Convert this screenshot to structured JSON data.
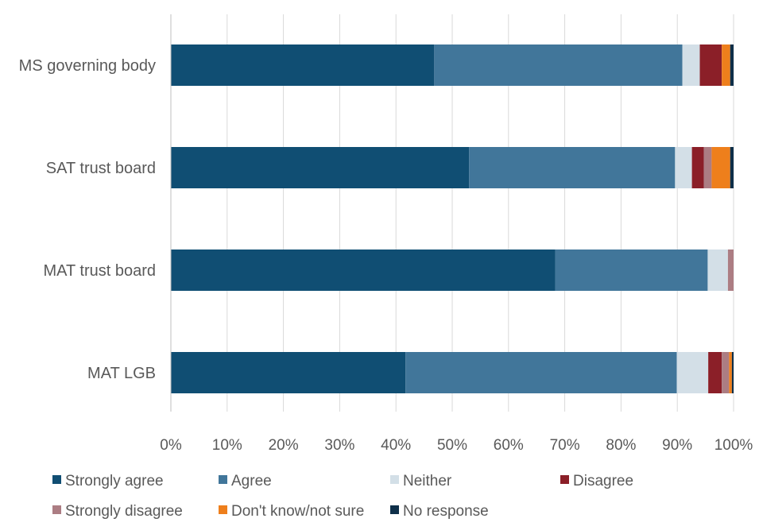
{
  "chart_data": {
    "type": "bar",
    "orientation": "horizontal",
    "stacked": "percent",
    "categories": [
      "MS governing body",
      "SAT trust board",
      "MAT trust board",
      "MAT LGB"
    ],
    "series": [
      {
        "name": "Strongly agree",
        "color": "#104E73",
        "values": [
          46.8,
          53.0,
          68.3,
          41.7
        ]
      },
      {
        "name": "Agree",
        "color": "#41769A",
        "values": [
          44.1,
          36.6,
          27.1,
          48.2
        ]
      },
      {
        "name": "Neither",
        "color": "#D3DFE7",
        "values": [
          3.1,
          3.0,
          3.6,
          5.6
        ]
      },
      {
        "name": "Disagree",
        "color": "#8B1F28",
        "values": [
          3.9,
          2.1,
          0.0,
          2.4
        ]
      },
      {
        "name": "Strongly disagree",
        "color": "#AC7D83",
        "values": [
          0.0,
          1.4,
          1.0,
          1.3
        ]
      },
      {
        "name": "Don't know/not sure",
        "color": "#EE7F1C",
        "values": [
          1.5,
          3.3,
          0.0,
          0.5
        ]
      },
      {
        "name": "No response",
        "color": "#0E2F49",
        "values": [
          0.6,
          0.6,
          0.0,
          0.3
        ]
      }
    ],
    "xlim": [
      0,
      100
    ],
    "x_ticks": [
      "0%",
      "10%",
      "20%",
      "30%",
      "40%",
      "50%",
      "60%",
      "70%",
      "80%",
      "90%",
      "100%"
    ],
    "grid": "vertical",
    "legend_position": "bottom"
  }
}
